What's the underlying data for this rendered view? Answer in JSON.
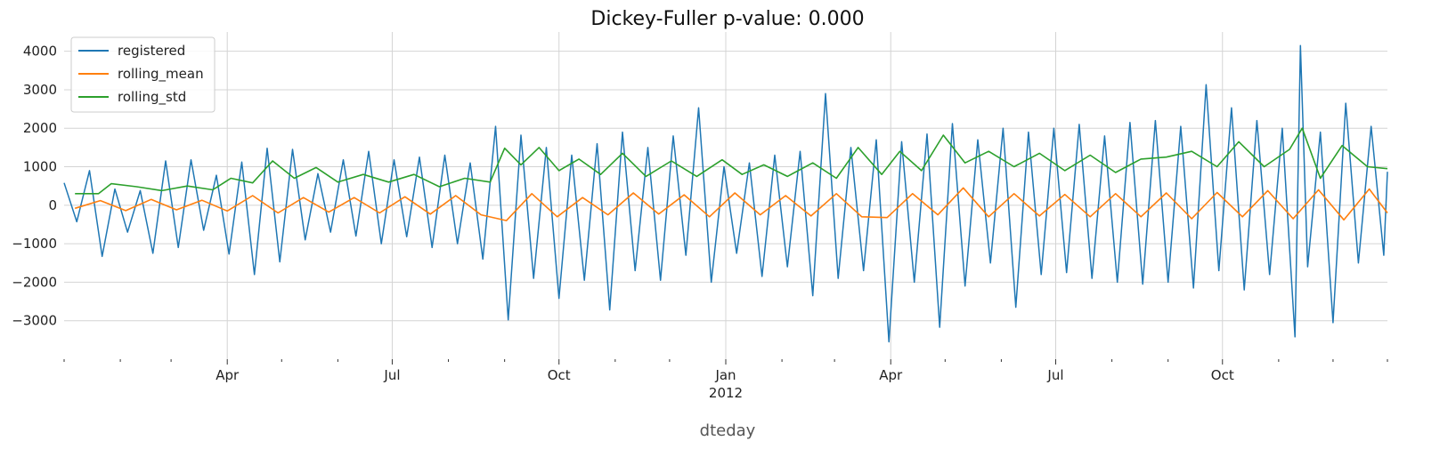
{
  "chart_data": {
    "type": "line",
    "title": "Dickey-Fuller p-value: 0.000",
    "xlabel": "dteday",
    "ylabel": "",
    "x_start": "2011-01-01",
    "x_end": "2012-12-31",
    "ylim": [
      -4000,
      4500
    ],
    "yticks": [
      -3000,
      -2000,
      -1000,
      0,
      1000,
      2000,
      3000,
      4000
    ],
    "xticks_major": [
      {
        "date": "2011-04-01",
        "label": "Apr",
        "sublabel": ""
      },
      {
        "date": "2011-07-01",
        "label": "Jul",
        "sublabel": ""
      },
      {
        "date": "2011-10-01",
        "label": "Oct",
        "sublabel": ""
      },
      {
        "date": "2012-01-01",
        "label": "Jan",
        "sublabel": "2012"
      },
      {
        "date": "2012-04-01",
        "label": "Apr",
        "sublabel": ""
      },
      {
        "date": "2012-07-01",
        "label": "Jul",
        "sublabel": ""
      },
      {
        "date": "2012-10-01",
        "label": "Oct",
        "sublabel": ""
      }
    ],
    "xticks_minor": [
      "2011-01-01",
      "2011-02-01",
      "2011-03-01",
      "2011-05-01",
      "2011-06-01",
      "2011-08-01",
      "2011-09-01",
      "2011-11-01",
      "2011-12-01",
      "2012-02-01",
      "2012-03-01",
      "2012-05-01",
      "2012-06-01",
      "2012-08-01",
      "2012-09-01",
      "2012-11-01",
      "2012-12-01",
      "2012-12-31"
    ],
    "grid": true,
    "legend_position": "top-left",
    "series": [
      {
        "name": "registered",
        "color": "#1f77b4",
        "points": [
          [
            "2011-01-01",
            580
          ],
          [
            "2011-01-08",
            -430
          ],
          [
            "2011-01-15",
            900
          ],
          [
            "2011-01-22",
            -1330
          ],
          [
            "2011-01-29",
            420
          ],
          [
            "2011-02-05",
            -700
          ],
          [
            "2011-02-12",
            380
          ],
          [
            "2011-02-19",
            -1250
          ],
          [
            "2011-02-26",
            1150
          ],
          [
            "2011-03-05",
            -1100
          ],
          [
            "2011-03-12",
            1180
          ],
          [
            "2011-03-19",
            -650
          ],
          [
            "2011-03-26",
            780
          ],
          [
            "2011-04-02",
            -1270
          ],
          [
            "2011-04-09",
            1120
          ],
          [
            "2011-04-16",
            -1800
          ],
          [
            "2011-04-23",
            1480
          ],
          [
            "2011-04-30",
            -1470
          ],
          [
            "2011-05-07",
            1450
          ],
          [
            "2011-05-14",
            -900
          ],
          [
            "2011-05-21",
            820
          ],
          [
            "2011-05-28",
            -700
          ],
          [
            "2011-06-04",
            1180
          ],
          [
            "2011-06-11",
            -800
          ],
          [
            "2011-06-18",
            1400
          ],
          [
            "2011-06-25",
            -1000
          ],
          [
            "2011-07-02",
            1180
          ],
          [
            "2011-07-09",
            -820
          ],
          [
            "2011-07-16",
            1250
          ],
          [
            "2011-07-23",
            -1100
          ],
          [
            "2011-07-30",
            1300
          ],
          [
            "2011-08-06",
            -1000
          ],
          [
            "2011-08-13",
            1100
          ],
          [
            "2011-08-20",
            -1400
          ],
          [
            "2011-08-27",
            2050
          ],
          [
            "2011-09-03",
            -2980
          ],
          [
            "2011-09-10",
            1820
          ],
          [
            "2011-09-17",
            -1900
          ],
          [
            "2011-09-24",
            1500
          ],
          [
            "2011-10-01",
            -2420
          ],
          [
            "2011-10-08",
            1300
          ],
          [
            "2011-10-15",
            -1950
          ],
          [
            "2011-10-22",
            1600
          ],
          [
            "2011-10-29",
            -2720
          ],
          [
            "2011-11-05",
            1900
          ],
          [
            "2011-11-12",
            -1700
          ],
          [
            "2011-11-19",
            1500
          ],
          [
            "2011-11-26",
            -1950
          ],
          [
            "2011-12-03",
            1800
          ],
          [
            "2011-12-10",
            -1300
          ],
          [
            "2011-12-17",
            2530
          ],
          [
            "2011-12-24",
            -2000
          ],
          [
            "2011-12-31",
            1000
          ],
          [
            "2012-01-07",
            -1250
          ],
          [
            "2012-01-14",
            1100
          ],
          [
            "2012-01-21",
            -1850
          ],
          [
            "2012-01-28",
            1300
          ],
          [
            "2012-02-04",
            -1600
          ],
          [
            "2012-02-11",
            1400
          ],
          [
            "2012-02-18",
            -2350
          ],
          [
            "2012-02-25",
            2900
          ],
          [
            "2012-03-03",
            -1900
          ],
          [
            "2012-03-10",
            1500
          ],
          [
            "2012-03-17",
            -1700
          ],
          [
            "2012-03-24",
            1700
          ],
          [
            "2012-03-31",
            -3550
          ],
          [
            "2012-04-07",
            1650
          ],
          [
            "2012-04-14",
            -2000
          ],
          [
            "2012-04-21",
            1850
          ],
          [
            "2012-04-28",
            -3170
          ],
          [
            "2012-05-05",
            2120
          ],
          [
            "2012-05-12",
            -2100
          ],
          [
            "2012-05-19",
            1700
          ],
          [
            "2012-05-26",
            -1500
          ],
          [
            "2012-06-02",
            2000
          ],
          [
            "2012-06-09",
            -2650
          ],
          [
            "2012-06-16",
            1900
          ],
          [
            "2012-06-23",
            -1800
          ],
          [
            "2012-06-30",
            2000
          ],
          [
            "2012-07-07",
            -1750
          ],
          [
            "2012-07-14",
            2100
          ],
          [
            "2012-07-21",
            -1900
          ],
          [
            "2012-07-28",
            1800
          ],
          [
            "2012-08-04",
            -2000
          ],
          [
            "2012-08-11",
            2150
          ],
          [
            "2012-08-18",
            -2050
          ],
          [
            "2012-08-25",
            2200
          ],
          [
            "2012-09-01",
            -2000
          ],
          [
            "2012-09-08",
            2050
          ],
          [
            "2012-09-15",
            -2150
          ],
          [
            "2012-09-22",
            3130
          ],
          [
            "2012-09-29",
            -1700
          ],
          [
            "2012-10-06",
            2530
          ],
          [
            "2012-10-13",
            -2200
          ],
          [
            "2012-10-20",
            2200
          ],
          [
            "2012-10-27",
            -1800
          ],
          [
            "2012-11-03",
            2000
          ],
          [
            "2012-11-10",
            -3420
          ],
          [
            "2012-11-13",
            4150
          ],
          [
            "2012-11-17",
            -1600
          ],
          [
            "2012-11-24",
            1900
          ],
          [
            "2012-12-01",
            -3050
          ],
          [
            "2012-12-08",
            2650
          ],
          [
            "2012-12-15",
            -1500
          ],
          [
            "2012-12-22",
            2050
          ],
          [
            "2012-12-29",
            -1300
          ],
          [
            "2012-12-31",
            870
          ]
        ]
      },
      {
        "name": "rolling_mean",
        "color": "#ff7f0e",
        "points": [
          [
            "2011-01-07",
            -80
          ],
          [
            "2011-01-21",
            120
          ],
          [
            "2011-02-04",
            -140
          ],
          [
            "2011-02-18",
            150
          ],
          [
            "2011-03-04",
            -120
          ],
          [
            "2011-03-18",
            130
          ],
          [
            "2011-04-01",
            -150
          ],
          [
            "2011-04-15",
            250
          ],
          [
            "2011-04-29",
            -200
          ],
          [
            "2011-05-13",
            200
          ],
          [
            "2011-05-27",
            -180
          ],
          [
            "2011-06-10",
            200
          ],
          [
            "2011-06-24",
            -200
          ],
          [
            "2011-07-08",
            220
          ],
          [
            "2011-07-22",
            -230
          ],
          [
            "2011-08-05",
            250
          ],
          [
            "2011-08-19",
            -250
          ],
          [
            "2011-09-02",
            -400
          ],
          [
            "2011-09-16",
            300
          ],
          [
            "2011-09-30",
            -300
          ],
          [
            "2011-10-14",
            200
          ],
          [
            "2011-10-28",
            -250
          ],
          [
            "2011-11-11",
            320
          ],
          [
            "2011-11-25",
            -230
          ],
          [
            "2011-12-09",
            270
          ],
          [
            "2011-12-23",
            -300
          ],
          [
            "2012-01-06",
            320
          ],
          [
            "2012-01-20",
            -250
          ],
          [
            "2012-02-03",
            250
          ],
          [
            "2012-02-17",
            -280
          ],
          [
            "2012-03-02",
            300
          ],
          [
            "2012-03-16",
            -300
          ],
          [
            "2012-03-30",
            -320
          ],
          [
            "2012-04-13",
            300
          ],
          [
            "2012-04-27",
            -250
          ],
          [
            "2012-05-11",
            450
          ],
          [
            "2012-05-25",
            -300
          ],
          [
            "2012-06-08",
            300
          ],
          [
            "2012-06-22",
            -280
          ],
          [
            "2012-07-06",
            280
          ],
          [
            "2012-07-20",
            -300
          ],
          [
            "2012-08-03",
            300
          ],
          [
            "2012-08-17",
            -300
          ],
          [
            "2012-08-31",
            320
          ],
          [
            "2012-09-14",
            -350
          ],
          [
            "2012-09-28",
            330
          ],
          [
            "2012-10-12",
            -300
          ],
          [
            "2012-10-26",
            380
          ],
          [
            "2012-11-09",
            -350
          ],
          [
            "2012-11-23",
            400
          ],
          [
            "2012-12-07",
            -380
          ],
          [
            "2012-12-21",
            420
          ],
          [
            "2012-12-31",
            -200
          ]
        ]
      },
      {
        "name": "rolling_std",
        "color": "#2ca02c",
        "points": [
          [
            "2011-01-07",
            300
          ],
          [
            "2011-01-20",
            300
          ],
          [
            "2011-01-27",
            560
          ],
          [
            "2011-02-10",
            480
          ],
          [
            "2011-02-24",
            380
          ],
          [
            "2011-03-10",
            500
          ],
          [
            "2011-03-24",
            400
          ],
          [
            "2011-04-03",
            700
          ],
          [
            "2011-04-15",
            580
          ],
          [
            "2011-04-26",
            1150
          ],
          [
            "2011-05-08",
            700
          ],
          [
            "2011-05-20",
            980
          ],
          [
            "2011-06-01",
            600
          ],
          [
            "2011-06-15",
            800
          ],
          [
            "2011-06-29",
            600
          ],
          [
            "2011-07-13",
            800
          ],
          [
            "2011-07-27",
            480
          ],
          [
            "2011-08-10",
            700
          ],
          [
            "2011-08-24",
            600
          ],
          [
            "2011-09-01",
            1480
          ],
          [
            "2011-09-10",
            1050
          ],
          [
            "2011-09-20",
            1500
          ],
          [
            "2011-10-01",
            900
          ],
          [
            "2011-10-12",
            1200
          ],
          [
            "2011-10-24",
            800
          ],
          [
            "2011-11-05",
            1350
          ],
          [
            "2011-11-18",
            750
          ],
          [
            "2011-12-02",
            1150
          ],
          [
            "2011-12-16",
            750
          ],
          [
            "2011-12-30",
            1180
          ],
          [
            "2012-01-10",
            800
          ],
          [
            "2012-01-22",
            1050
          ],
          [
            "2012-02-04",
            750
          ],
          [
            "2012-02-18",
            1100
          ],
          [
            "2012-03-02",
            700
          ],
          [
            "2012-03-14",
            1500
          ],
          [
            "2012-03-27",
            800
          ],
          [
            "2012-04-06",
            1400
          ],
          [
            "2012-04-18",
            900
          ],
          [
            "2012-04-30",
            1820
          ],
          [
            "2012-05-12",
            1100
          ],
          [
            "2012-05-25",
            1400
          ],
          [
            "2012-06-08",
            1000
          ],
          [
            "2012-06-22",
            1350
          ],
          [
            "2012-07-06",
            900
          ],
          [
            "2012-07-20",
            1300
          ],
          [
            "2012-08-03",
            850
          ],
          [
            "2012-08-17",
            1200
          ],
          [
            "2012-08-31",
            1250
          ],
          [
            "2012-09-14",
            1400
          ],
          [
            "2012-09-28",
            1000
          ],
          [
            "2012-10-10",
            1650
          ],
          [
            "2012-10-24",
            1000
          ],
          [
            "2012-11-07",
            1450
          ],
          [
            "2012-11-14",
            2000
          ],
          [
            "2012-11-24",
            700
          ],
          [
            "2012-12-06",
            1550
          ],
          [
            "2012-12-20",
            1000
          ],
          [
            "2012-12-31",
            950
          ]
        ]
      }
    ]
  }
}
